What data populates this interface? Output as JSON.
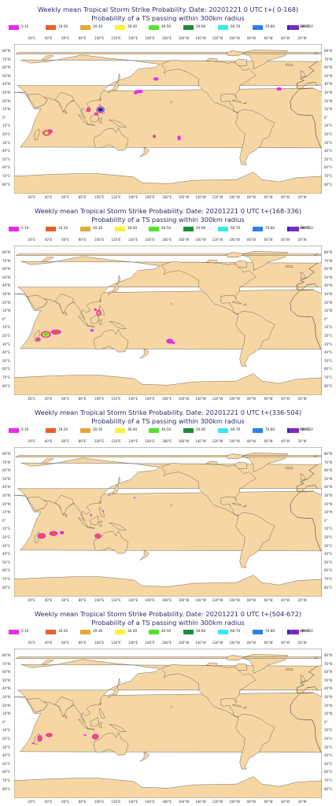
{
  "legend_bins": [
    {
      "label": "5-10",
      "color": "#e82be8"
    },
    {
      "label": "10-20",
      "color": "#e8602a"
    },
    {
      "label": "20-30",
      "color": "#e6a636"
    },
    {
      "label": "30-40",
      "color": "#f4f43a"
    },
    {
      "label": "40-50",
      "color": "#54e42c"
    },
    {
      "label": "50-60",
      "color": "#1e8c3a"
    },
    {
      "label": "60-70",
      "color": "#38e8e8"
    },
    {
      "label": "70-80",
      "color": "#2a82e6"
    },
    {
      "label": "80-90",
      "color": "#1a1ac8"
    },
    {
      "label": "90-110",
      "color": "#7a2ab8"
    }
  ],
  "lon_labels": [
    "20°E",
    "40°E",
    "60°E",
    "80°E",
    "100°E",
    "120°E",
    "140°E",
    "160°E",
    "180°E",
    "160°W",
    "140°W",
    "120°W",
    "100°W",
    "80°W",
    "60°W",
    "40°W",
    "20°W"
  ],
  "lat_labels": [
    "80°N",
    "70°N",
    "60°N",
    "50°N",
    "40°N",
    "30°N",
    "20°N",
    "10°N",
    "0°",
    "10°S",
    "20°S",
    "30°S",
    "40°S",
    "50°S",
    "60°S",
    "70°S",
    "80°S"
  ],
  "colors": {
    "land": "#f6d7a4",
    "coast": "#303030",
    "ocean": "#ffffff",
    "title": "#2a2a6a"
  },
  "panels": [
    {
      "title": "Weekly mean Tropical Storm Strike Probability. Date: 20201221  0 UTC   t+( 0-168)",
      "subtitle": "Probability of a TS passing within  300km radius",
      "blobs": [
        {
          "lon": 58,
          "lat": -17,
          "rx": 5,
          "ry": 3.5,
          "levels": [
            1,
            2,
            4
          ]
        },
        {
          "lon": 62,
          "lat": -15,
          "rx": 3,
          "ry": 2.5,
          "levels": [
            1,
            2
          ]
        },
        {
          "lon": 107,
          "lat": 11,
          "rx": 2.5,
          "ry": 3,
          "levels": [
            1,
            2
          ]
        },
        {
          "lon": 121,
          "lat": 11,
          "rx": 5,
          "ry": 4,
          "levels": [
            1,
            2,
            8,
            9
          ]
        },
        {
          "lon": 116,
          "lat": 6,
          "rx": 2.5,
          "ry": 2,
          "levels": [
            1,
            2
          ]
        },
        {
          "lon": 166,
          "lat": 33,
          "rx": 5,
          "ry": 2,
          "levels": [
            1
          ]
        },
        {
          "lon": 162,
          "lat": 31,
          "rx": 2,
          "ry": 1.5,
          "levels": [
            1
          ]
        },
        {
          "lon": 186,
          "lat": 48,
          "rx": 3,
          "ry": 2,
          "levels": [
            1
          ]
        },
        {
          "lon": 184,
          "lat": -21,
          "rx": 2,
          "ry": 2,
          "levels": [
            1,
            2
          ]
        },
        {
          "lon": 213,
          "lat": -23,
          "rx": 2,
          "ry": 3,
          "levels": [
            1
          ]
        },
        {
          "lon": 330,
          "lat": 36,
          "rx": 3,
          "ry": 2,
          "levels": [
            1
          ]
        }
      ]
    },
    {
      "title": "Weekly mean Tropical Storm Strike Probability. Date: 20201221  0 UTC   t+(168-336)",
      "subtitle": "Probability of a TS passing within  300km radius",
      "blobs": [
        {
          "lon": 57,
          "lat": -17,
          "rx": 6,
          "ry": 4,
          "levels": [
            1,
            2,
            4,
            5
          ]
        },
        {
          "lon": 69,
          "lat": -14,
          "rx": 6,
          "ry": 3,
          "levels": [
            1,
            2
          ]
        },
        {
          "lon": 48,
          "lat": -23,
          "rx": 3,
          "ry": 2.5,
          "levels": [
            1,
            2
          ]
        },
        {
          "lon": 119,
          "lat": 9,
          "rx": 3,
          "ry": 4,
          "levels": [
            1,
            2,
            3
          ]
        },
        {
          "lon": 111,
          "lat": -12,
          "rx": 2,
          "ry": 1.5,
          "levels": [
            1
          ]
        },
        {
          "lon": 115,
          "lat": 13,
          "rx": 1.5,
          "ry": 1.5,
          "levels": [
            1
          ]
        },
        {
          "lon": 202,
          "lat": -25,
          "rx": 4,
          "ry": 3,
          "levels": [
            1
          ]
        },
        {
          "lon": 206,
          "lat": -27,
          "rx": 2,
          "ry": 1.5,
          "levels": [
            1
          ]
        }
      ]
    },
    {
      "title": "Weekly mean Tropical Storm Strike Probability. Date: 20201221  0 UTC   t+(336-504)",
      "subtitle": "Probability of a TS passing within  300km radius",
      "blobs": [
        {
          "lon": 52,
          "lat": -17,
          "rx": 5,
          "ry": 3.5,
          "levels": [
            1,
            2
          ]
        },
        {
          "lon": 66,
          "lat": -14,
          "rx": 5,
          "ry": 3,
          "levels": [
            1,
            2
          ]
        },
        {
          "lon": 76,
          "lat": -13,
          "rx": 2.5,
          "ry": 2,
          "levels": [
            1
          ]
        },
        {
          "lon": 118,
          "lat": -17,
          "rx": 4,
          "ry": 3,
          "levels": [
            1,
            2
          ]
        },
        {
          "lon": 110,
          "lat": 8,
          "rx": 1,
          "ry": 1.5,
          "levels": [
            1
          ]
        },
        {
          "lon": 124,
          "lat": 13,
          "rx": 1,
          "ry": 1,
          "levels": [
            1
          ]
        },
        {
          "lon": 161,
          "lat": 29,
          "rx": 1,
          "ry": 1,
          "levels": [
            1
          ]
        }
      ]
    },
    {
      "title": "Weekly mean Tropical Storm Strike Probability. Date: 20201221  0 UTC   t+(504-672)",
      "subtitle": "Probability of a TS passing within  300km radius",
      "blobs": [
        {
          "lon": 50,
          "lat": -18,
          "rx": 3,
          "ry": 4,
          "levels": [
            1,
            2
          ]
        },
        {
          "lon": 61,
          "lat": -14,
          "rx": 4,
          "ry": 2.5,
          "levels": [
            1,
            2
          ]
        },
        {
          "lon": 115,
          "lat": -16,
          "rx": 4,
          "ry": 3.5,
          "levels": [
            1,
            2
          ]
        },
        {
          "lon": 103,
          "lat": -14,
          "rx": 1.5,
          "ry": 1,
          "levels": [
            1
          ]
        },
        {
          "lon": 42,
          "lat": -24,
          "rx": 1.5,
          "ry": 1,
          "levels": [
            1
          ]
        }
      ]
    }
  ]
}
